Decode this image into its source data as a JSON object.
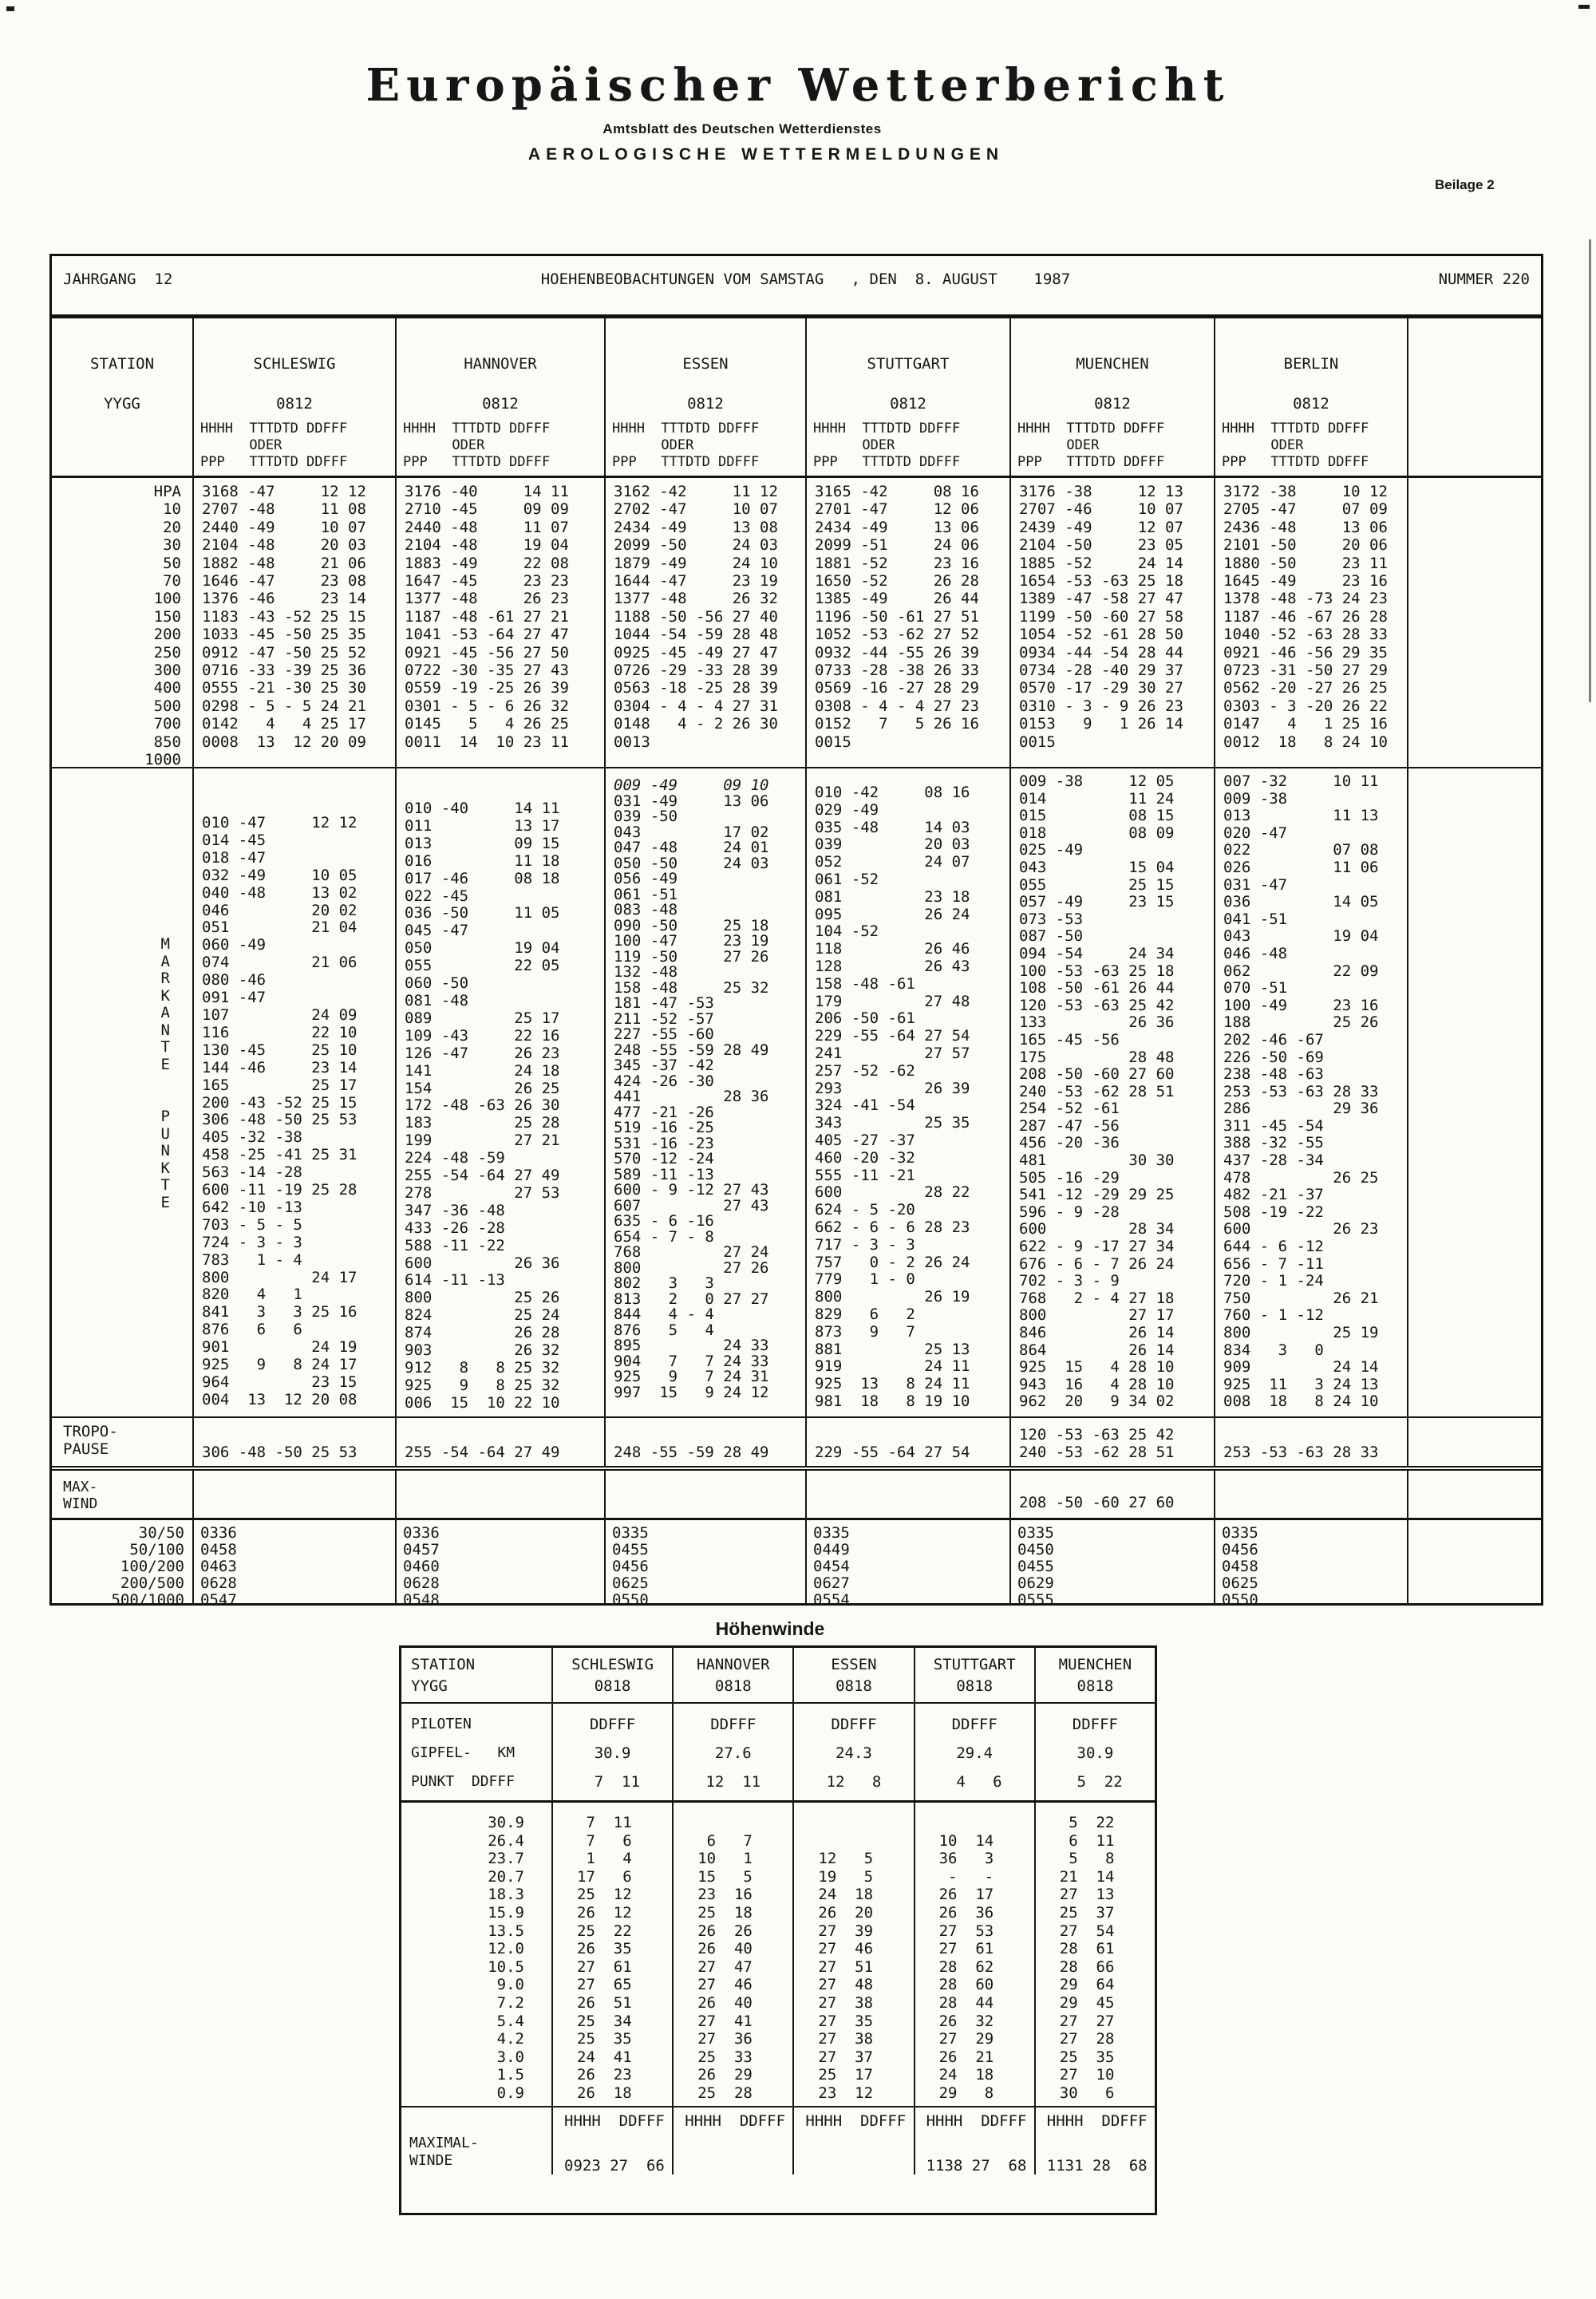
{
  "page": {
    "title": "Europäischer Wetterbericht",
    "subtitle": "Amtsblatt des Deutschen Wetterdienstes",
    "section": "AEROLOGISCHE WETTERMELDUNGEN",
    "beilage": "Beilage 2",
    "hoehenwinde_title": "Höhenwinde"
  },
  "main_table": {
    "jahrgang": "JAHRGANG  12",
    "obs_title": "HOEHENBEOBACHTUNGEN VOM SAMSTAG   , DEN  8. AUGUST    1987",
    "nummer": "NUMMER 220",
    "station_label": "STATION",
    "yygg_label": "YYGG",
    "yygg_value": "0812",
    "stations": [
      "SCHLESWIG",
      "HANNOVER",
      "ESSEN",
      "STUTTGART",
      "MUENCHEN",
      "BERLIN"
    ],
    "subheader": [
      "HHHH  TTTDTD DDFFF",
      "      ODER",
      "PPP   TTTDTD DDFFF"
    ],
    "hpa_label": "HPA",
    "hpa_levels": [
      "10",
      "20",
      "30",
      "50",
      "70",
      "100",
      "150",
      "200",
      "250",
      "300",
      "400",
      "500",
      "700",
      "850",
      "1000"
    ],
    "pressure": {
      "schleswig": [
        "3168 -47     12 12",
        "2707 -48     11 08",
        "2440 -49     10 07",
        "2104 -48     20 03",
        "1882 -48     21 06",
        "1646 -47     23 08",
        "1376 -46     23 14",
        "1183 -43 -52 25 15",
        "1033 -45 -50 25 35",
        "0912 -47 -50 25 52",
        "0716 -33 -39 25 36",
        "0555 -21 -30 25 30",
        "0298 - 5 - 5 24 21",
        "0142   4   4 25 17",
        "0008  13  12 20 09"
      ],
      "hannover": [
        "3176 -40     14 11",
        "2710 -45     09 09",
        "2440 -48     11 07",
        "2104 -48     19 04",
        "1883 -49     22 08",
        "1647 -45     23 23",
        "1377 -48     26 23",
        "1187 -48 -61 27 21",
        "1041 -53 -64 27 47",
        "0921 -45 -56 27 50",
        "0722 -30 -35 27 43",
        "0559 -19 -25 26 39",
        "0301 - 5 - 6 26 32",
        "0145   5   4 26 25",
        "0011  14  10 23 11"
      ],
      "essen": [
        "3162 -42     11 12",
        "2702 -47     10 07",
        "2434 -49     13 08",
        "2099 -50     24 03",
        "1879 -49     24 10",
        "1644 -47     23 19",
        "1377 -48     26 32",
        "1188 -50 -56 27 40",
        "1044 -54 -59 28 48",
        "0925 -45 -49 27 47",
        "0726 -29 -33 28 39",
        "0563 -18 -25 28 39",
        "0304 - 4 - 4 27 31",
        "0148   4 - 2 26 30",
        "0013"
      ],
      "stuttgart": [
        "3165 -42     08 16",
        "2701 -47     12 06",
        "2434 -49     13 06",
        "2099 -51     24 06",
        "1881 -52     23 16",
        "1650 -52     26 28",
        "1385 -49     26 44",
        "1196 -50 -61 27 51",
        "1052 -53 -62 27 52",
        "0932 -44 -55 26 39",
        "0733 -28 -38 26 33",
        "0569 -16 -27 28 29",
        "0308 - 4 - 4 27 23",
        "0152   7   5 26 16",
        "0015"
      ],
      "muenchen": [
        "3176 -38     12 13",
        "2707 -46     10 07",
        "2439 -49     12 07",
        "2104 -50     23 05",
        "1885 -52     24 14",
        "1654 -53 -63 25 18",
        "1389 -47 -58 27 47",
        "1199 -50 -60 27 58",
        "1054 -52 -61 28 50",
        "0934 -44 -54 28 44",
        "0734 -28 -40 29 37",
        "0570 -17 -29 30 27",
        "0310 - 3 - 9 26 23",
        "0153   9   1 26 14",
        "0015"
      ],
      "berlin": [
        "3172 -38     10 12",
        "2705 -47     07 09",
        "2436 -48     13 06",
        "2101 -50     20 06",
        "1880 -50     23 11",
        "1645 -49     23 16",
        "1378 -48 -73 24 23",
        "1187 -46 -67 26 28",
        "1040 -52 -63 28 33",
        "0921 -46 -56 29 35",
        "0723 -31 -50 27 29",
        "0562 -20 -27 26 25",
        "0303 - 3 -20 26 22",
        "0147   4   1 25 16",
        "0012  18   8 24 10"
      ]
    },
    "markante_letters": [
      "M",
      "A",
      "R",
      "K",
      "A",
      "N",
      "T",
      "E"
    ],
    "punkte_letters": [
      "P",
      "U",
      "N",
      "K",
      "T",
      "E"
    ],
    "sig": {
      "schleswig": [
        "010 -47     12 12",
        "014 -45",
        "018 -47",
        "032 -49     10 05",
        "040 -48     13 02",
        "046         20 02",
        "051         21 04",
        "060 -49",
        "074         21 06",
        "080 -46",
        "091 -47",
        "107         24 09",
        "116         22 10",
        "130 -45     25 10",
        "144 -46     23 14",
        "165         25 17",
        "200 -43 -52 25 15",
        "306 -48 -50 25 53",
        "405 -32 -38",
        "458 -25 -41 25 31",
        "563 -14 -28",
        "600 -11 -19 25 28",
        "642 -10 -13",
        "703 - 5 - 5",
        "724 - 3 - 3",
        "783   1 - 4",
        "800         24 17",
        "820   4   1",
        "841   3   3 25 16",
        "876   6   6",
        "901         24 19",
        "925   9   8 24 17",
        "964         23 15",
        "004  13  12 20 08"
      ],
      "hannover": [
        "010 -40     14 11",
        "011         13 17",
        "013         09 15",
        "016         11 18",
        "017 -46     08 18",
        "022 -45",
        "036 -50     11 05",
        "045 -47",
        "050         19 04",
        "055         22 05",
        "060 -50",
        "081 -48",
        "089         25 17",
        "109 -43     22 16",
        "126 -47     26 23",
        "141         24 18",
        "154         26 25",
        "172 -48 -63 26 30",
        "183         25 28",
        "199         27 21",
        "224 -48 -59",
        "255 -54 -64 27 49",
        "278         27 53",
        "347 -36 -48",
        "433 -26 -28",
        "588 -11 -22",
        "600         26 36",
        "614 -11 -13",
        "800         25 26",
        "824         25 24",
        "874         26 28",
        "903         26 32",
        "912   8   8 25 32",
        "925   9   8 25 32",
        "006  15  10 22 10"
      ],
      "essen_handwritten": "009 -49     09 10",
      "essen": [
        "031 -49     13 06",
        "039 -50",
        "043         17 02",
        "047 -48     24 01",
        "050 -50     24 03",
        "056 -49",
        "061 -51",
        "083 -48",
        "090 -50     25 18",
        "100 -47     23 19",
        "119 -50     27 26",
        "132 -48",
        "158 -48     25 32",
        "181 -47 -53",
        "211 -52 -57",
        "227 -55 -60",
        "248 -55 -59 28 49",
        "345 -37 -42",
        "424 -26 -30",
        "441         28 36",
        "477 -21 -26",
        "519 -16 -25",
        "531 -16 -23",
        "570 -12 -24",
        "589 -11 -13",
        "600 - 9 -12 27 43",
        "607         27 43",
        "635 - 6 -16",
        "654 - 7 - 8",
        "768         27 24",
        "800         27 26",
        "802   3   3",
        "813   2   0 27 27",
        "844   4 - 4",
        "876   5   4",
        "895         24 33",
        "904   7   7 24 33",
        "925   9   7 24 31",
        "997  15   9 24 12"
      ],
      "stuttgart": [
        "010 -42     08 16",
        "029 -49",
        "035 -48     14 03",
        "039         20 03",
        "052         24 07",
        "061 -52",
        "081         23 18",
        "095         26 24",
        "104 -52",
        "118         26 46",
        "128         26 43",
        "158 -48 -61",
        "179         27 48",
        "206 -50 -61",
        "229 -55 -64 27 54",
        "241         27 57",
        "257 -52 -62",
        "293         26 39",
        "324 -41 -54",
        "343         25 35",
        "405 -27 -37",
        "460 -20 -32",
        "555 -11 -21",
        "600         28 22",
        "624 - 5 -20",
        "662 - 6 - 6 28 23",
        "717 - 3 - 3",
        "757   0 - 2 26 24",
        "779   1 - 0",
        "800         26 19",
        "829   6   2",
        "873   9   7",
        "881         25 13",
        "919         24 11",
        "925  13   8 24 11",
        "981  18   8 19 10"
      ],
      "muenchen": [
        "009 -38     12 05",
        "014         11 24",
        "015         08 15",
        "018         08 09",
        "025 -49",
        "043         15 04",
        "055         25 15",
        "057 -49     23 15",
        "073 -53",
        "087 -50",
        "094 -54     24 34",
        "100 -53 -63 25 18",
        "108 -50 -61 26 44",
        "120 -53 -63 25 42",
        "133         26 36",
        "165 -45 -56",
        "175         28 48",
        "208 -50 -60 27 60",
        "240 -53 -62 28 51",
        "254 -52 -61",
        "287 -47 -56",
        "456 -20 -36",
        "481         30 30",
        "505 -16 -29",
        "541 -12 -29 29 25",
        "596 - 9 -28",
        "600         28 34",
        "622 - 9 -17 27 34",
        "676 - 6 - 7 26 24",
        "702 - 3 - 9",
        "768   2 - 4 27 18",
        "800         27 17",
        "846         26 14",
        "864         26 14",
        "925  15   4 28 10",
        "943  16   4 28 10",
        "962  20   9 34 02"
      ],
      "berlin": [
        "007 -32     10 11",
        "009 -38",
        "013         11 13",
        "020 -47",
        "022         07 08",
        "026         11 06",
        "031 -47",
        "036         14 05",
        "041 -51",
        "043         19 04",
        "046 -48",
        "062         22 09",
        "070 -51",
        "100 -49     23 16",
        "188         25 26",
        "202 -46 -67",
        "226 -50 -69",
        "238 -48 -63",
        "253 -53 -63 28 33",
        "286         29 36",
        "311 -45 -54",
        "388 -32 -55",
        "437 -28 -34",
        "478         26 25",
        "482 -21 -37",
        "508 -19 -22",
        "600         26 23",
        "644 - 6 -12",
        "656 - 7 -11",
        "720 - 1 -24",
        "750         26 21",
        "760 - 1 -12",
        "800         25 19",
        "834   3   0",
        "909         24 14",
        "925  11   3 24 13",
        "008  18   8 24 10"
      ]
    },
    "tropo_label": [
      "TROPO-",
      "PAUSE"
    ],
    "tropo": {
      "schleswig": [
        "306 -48 -50 25 53"
      ],
      "hannover": [
        "255 -54 -64 27 49"
      ],
      "essen": [
        "248 -55 -59 28 49"
      ],
      "stuttgart": [
        "229 -55 -64 27 54"
      ],
      "muenchen": [
        "120 -53 -63 25 42",
        "240 -53 -62 28 51"
      ],
      "berlin": [
        "253 -53 -63 28 33"
      ]
    },
    "maxwind_label": [
      "MAX-",
      "WIND"
    ],
    "maxwind_muenchen": "208 -50 -60 27 60",
    "layers_labels": [
      "30/50",
      "50/100",
      "100/200",
      "200/500",
      "500/1000"
    ],
    "layers": {
      "schleswig": [
        "0336",
        "0458",
        "0463",
        "0628",
        "0547"
      ],
      "hannover": [
        "0336",
        "0457",
        "0460",
        "0628",
        "0548"
      ],
      "essen": [
        "0335",
        "0455",
        "0456",
        "0625",
        "0550"
      ],
      "stuttgart": [
        "0335",
        "0449",
        "0454",
        "0627",
        "0554"
      ],
      "muenchen": [
        "0335",
        "0450",
        "0455",
        "0629",
        "0555"
      ],
      "berlin": [
        "0335",
        "0456",
        "0458",
        "0625",
        "0550"
      ]
    }
  },
  "hw_table": {
    "station_label": "STATION",
    "yygg_label": "YYGG",
    "yygg_value": "0818",
    "stations": [
      "SCHLESWIG",
      "HANNOVER",
      "ESSEN",
      "STUTTGART",
      "MUENCHEN"
    ],
    "piloten_label": [
      "PILOTEN",
      "GIPFEL-   KM",
      "PUNKT  DDFFF"
    ],
    "ddfff_label": "DDFFF",
    "gipfel": [
      "30.9",
      "27.6",
      "24.3",
      "29.4",
      "30.9"
    ],
    "punkt": [
      " 7  11",
      "12  11",
      "12   8",
      " 4   6",
      " 5  22"
    ],
    "altitudes": [
      "30.9",
      "26.4",
      "23.7",
      "20.7",
      "18.3",
      "15.9",
      "13.5",
      "12.0",
      "10.5",
      "9.0",
      "7.2",
      "5.4",
      "4.2",
      "3.0",
      "1.5",
      "0.9"
    ],
    "winds": {
      "schleswig": [
        " 7  11",
        " 7   6",
        " 1   4",
        "17   6",
        "25  12",
        "26  12",
        "25  22",
        "26  35",
        "27  61",
        "27  65",
        "26  51",
        "25  34",
        "25  35",
        "24  41",
        "26  23",
        "26  18"
      ],
      "hannover": [
        "",
        " 6   7",
        "10   1",
        "15   5",
        "23  16",
        "25  18",
        "26  26",
        "26  40",
        "27  47",
        "27  46",
        "26  40",
        "27  41",
        "27  36",
        "25  33",
        "26  29",
        "25  28"
      ],
      "essen": [
        "",
        "",
        "12   5",
        "19   5",
        "24  18",
        "26  20",
        "27  39",
        "27  46",
        "27  51",
        "27  48",
        "27  38",
        "27  35",
        "27  38",
        "27  37",
        "25  17",
        "23  12"
      ],
      "stuttgart": [
        "",
        "10  14",
        "36   3",
        " -   -",
        "26  17",
        "26  36",
        "27  53",
        "27  61",
        "28  62",
        "28  60",
        "28  44",
        "26  32",
        "27  29",
        "26  21",
        "24  18",
        "29   8"
      ],
      "muenchen": [
        " 5  22",
        " 6  11",
        " 5   8",
        "21  14",
        "27  13",
        "25  37",
        "27  54",
        "28  61",
        "28  66",
        "29  64",
        "29  45",
        "27  27",
        "27  28",
        "25  35",
        "27  10",
        "30   6"
      ]
    },
    "max_subheader": "HHHH  DDFFF",
    "maximal_label": [
      "MAXIMAL-",
      "WINDE"
    ],
    "maximal": [
      "0923 27  66",
      "",
      "",
      "1138 27  68",
      "1131 28  68"
    ]
  }
}
